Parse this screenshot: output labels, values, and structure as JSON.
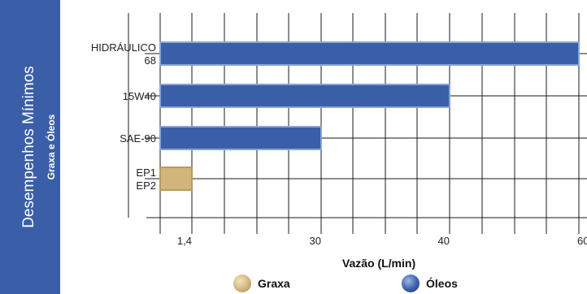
{
  "sidebar": {
    "title": "Desempenhos Mínimos",
    "subtitle": "Graxa e Óleos"
  },
  "colors": {
    "sidebar_bg": "#3a5fa8",
    "oleos": "#3a5fa8",
    "graxa": "#d2b57c"
  },
  "chart_data": {
    "type": "bar",
    "orientation": "horizontal",
    "categories": [
      "HIDRÁULICO\n68",
      "15W40",
      "SAE-90",
      "EP1\nEP2"
    ],
    "series": [
      {
        "name": "Óleos",
        "values": [
          60,
          40,
          30,
          null
        ]
      },
      {
        "name": "Graxa",
        "values": [
          null,
          null,
          null,
          1.4
        ]
      }
    ],
    "xlabel": "Vazão (L/min)",
    "x_ticks": [
      "1,4",
      "30",
      "40",
      "60"
    ],
    "x_tick_values": [
      1.4,
      30,
      40,
      60
    ],
    "xlim": [
      0,
      60
    ],
    "grid": true,
    "legend": [
      "Graxa",
      "Óleos"
    ],
    "legend_position": "bottom"
  }
}
